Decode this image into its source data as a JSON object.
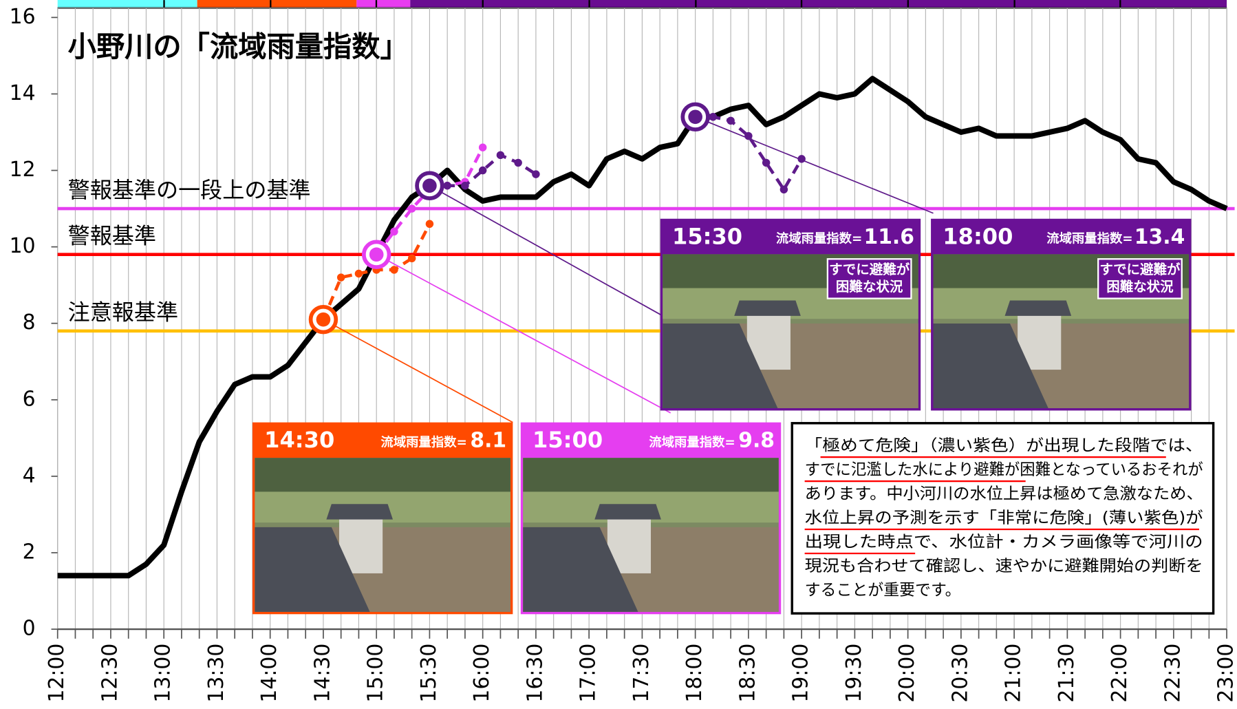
{
  "chart_data": {
    "type": "line",
    "title": "小野川の「流域雨量指数」",
    "categories": [
      "12:00",
      null,
      null,
      "12:30",
      null,
      null,
      "13:00",
      null,
      null,
      "13:30",
      null,
      null,
      "14:00",
      null,
      null,
      "14:30",
      null,
      null,
      "15:00",
      null,
      null,
      "15:30",
      null,
      null,
      "16:00",
      null,
      null,
      "16:30",
      null,
      null,
      "17:00",
      null,
      null,
      "17:30",
      null,
      null,
      "18:00",
      null,
      null,
      "18:30",
      null,
      null,
      "19:00",
      null,
      null,
      "19:30",
      null,
      null,
      "20:00",
      null,
      null,
      "20:30",
      null,
      null,
      "21:00",
      null,
      null,
      "21:30",
      null,
      null,
      "22:00",
      null,
      null,
      "22:30",
      null,
      null,
      "23:00"
    ],
    "series": [
      {
        "color": "#000000",
        "dashed": false,
        "values": [
          1.4,
          1.4,
          1.4,
          1.4,
          1.4,
          1.7,
          2.2,
          3.6,
          4.9,
          5.7,
          6.4,
          6.6,
          6.6,
          6.9,
          7.5,
          8.1,
          8.5,
          8.9,
          9.8,
          10.7,
          11.3,
          11.6,
          12.0,
          11.5,
          11.2,
          11.3,
          11.3,
          11.3,
          11.7,
          11.9,
          11.6,
          12.3,
          12.5,
          12.3,
          12.6,
          12.7,
          13.4,
          13.4,
          13.6,
          13.7,
          13.2,
          13.4,
          13.7,
          14.0,
          13.9,
          14.0,
          14.4,
          14.1,
          13.8,
          13.4,
          13.2,
          13.0,
          13.1,
          12.9,
          12.9,
          12.9,
          13.0,
          13.1,
          13.3,
          13.0,
          12.8,
          12.3,
          12.2,
          11.7,
          11.5,
          11.2,
          11.0
        ]
      },
      {
        "color": "#ff4a00",
        "dashed": true,
        "values": [
          null,
          null,
          null,
          null,
          null,
          null,
          null,
          null,
          null,
          null,
          null,
          null,
          null,
          null,
          null,
          8.1,
          9.2,
          9.3,
          9.4,
          9.4,
          9.7,
          10.6,
          null,
          null,
          null,
          null,
          null,
          null,
          null,
          null,
          null,
          null,
          null,
          null,
          null,
          null,
          null,
          null,
          null,
          null,
          null,
          null,
          null,
          null,
          null,
          null,
          null,
          null,
          null,
          null,
          null,
          null,
          null,
          null,
          null,
          null,
          null,
          null,
          null,
          null,
          null,
          null,
          null,
          null,
          null,
          null,
          null
        ]
      },
      {
        "color": "#e53ef0",
        "dashed": true,
        "values": [
          null,
          null,
          null,
          null,
          null,
          null,
          null,
          null,
          null,
          null,
          null,
          null,
          null,
          null,
          null,
          null,
          null,
          null,
          9.8,
          10.4,
          11.0,
          11.5,
          11.6,
          11.7,
          12.6,
          null,
          null,
          null,
          null,
          null,
          null,
          null,
          null,
          null,
          null,
          null,
          null,
          null,
          null,
          null,
          null,
          null,
          null,
          null,
          null,
          null,
          null,
          null,
          null,
          null,
          null,
          null,
          null,
          null,
          null,
          null,
          null,
          null,
          null,
          null,
          null,
          null,
          null,
          null,
          null,
          null,
          null
        ]
      },
      {
        "color": "#5e1a8a",
        "dashed": true,
        "values": [
          null,
          null,
          null,
          null,
          null,
          null,
          null,
          null,
          null,
          null,
          null,
          null,
          null,
          null,
          null,
          null,
          null,
          null,
          null,
          null,
          null,
          11.6,
          11.6,
          11.6,
          12.0,
          12.4,
          12.2,
          11.9,
          null,
          null,
          null,
          null,
          null,
          null,
          null,
          null,
          13.4,
          13.4,
          13.3,
          12.9,
          12.2,
          11.5,
          12.3,
          null,
          null,
          null,
          null,
          null,
          null,
          null,
          null,
          null,
          null,
          null,
          null,
          null,
          null,
          null,
          null,
          null,
          null,
          null,
          null,
          null,
          null,
          null,
          null
        ]
      }
    ],
    "ylim": [
      0,
      16
    ],
    "yticks": [
      0,
      2,
      4,
      6,
      8,
      10,
      12,
      14,
      16
    ],
    "grid": "x",
    "thresholds": [
      {
        "label": "注意報基準",
        "value": 7.8,
        "color": "#ffc000"
      },
      {
        "label": "警報基準",
        "value": 9.8,
        "color": "#ff0000"
      },
      {
        "label": "警報基準の一段上の基準",
        "value": 11.0,
        "color": "#e53ef0"
      }
    ],
    "panels": [
      {
        "time": "14:30",
        "label": "流域雨量指数=",
        "value": 8.1,
        "color": "#ff4a00"
      },
      {
        "time": "15:00",
        "label": "流域雨量指数=",
        "value": 9.8,
        "color": "#e53ef0"
      },
      {
        "time": "15:30",
        "label": "流域雨量指数=",
        "value": 11.6,
        "color": "#6a1196",
        "badge": [
          "すでに避難が",
          "困難な状況"
        ]
      },
      {
        "time": "18:00",
        "label": "流域雨量指数=",
        "value": 13.4,
        "color": "#6a1196",
        "badge": [
          "すでに避難が",
          "困難な状況"
        ]
      }
    ],
    "note": [
      "「極めて危険」（濃い紫色）が出現した段階では、",
      "すでに氾濫した水により避難が困難となっているおそれが",
      "あります。中小河川の水位上昇は極めて急激なため、",
      "水位上昇の予測を示す「非常に危険」(薄い紫色)が",
      "出現した時点で、水位計・カメラ画像等で河川の",
      "現況も合わせて確認し、速やかに避難開始の判断を",
      "することが重要です。"
    ]
  }
}
